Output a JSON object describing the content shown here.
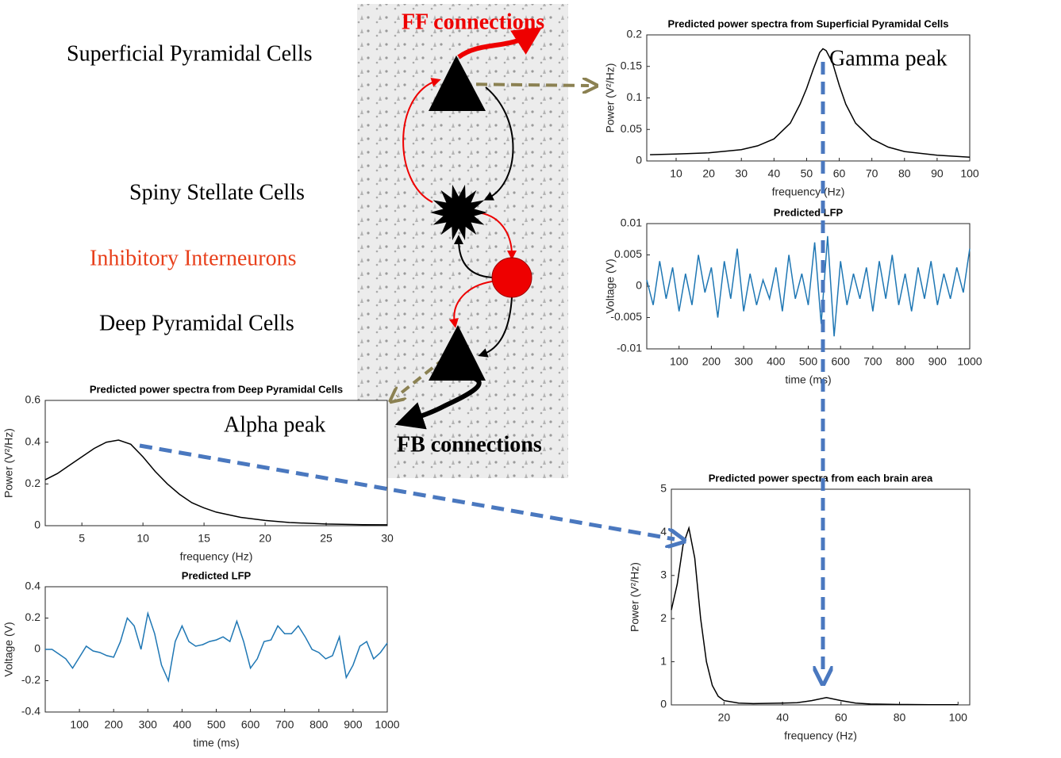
{
  "diagram": {
    "labels": [
      "FF connections",
      "Superficial Pyramidal Cells",
      "Spiny Stellate Cells",
      "Inhibitory Interneurons",
      "Deep Pyramidal Cells",
      "FB connections"
    ]
  },
  "chart_data": [
    {
      "type": "line",
      "title": "Predicted power spectra from Superficial Pyramidal Cells",
      "xlabel": "frequency (Hz)",
      "ylabel": "Power (V²/Hz)",
      "annotation": "Gamma peak",
      "x": [
        2,
        10,
        20,
        30,
        35,
        40,
        45,
        48,
        50,
        52,
        54,
        55,
        56,
        58,
        60,
        62,
        65,
        70,
        75,
        80,
        90,
        100
      ],
      "values": [
        0.01,
        0.011,
        0.013,
        0.018,
        0.024,
        0.035,
        0.06,
        0.09,
        0.115,
        0.145,
        0.172,
        0.178,
        0.175,
        0.155,
        0.12,
        0.09,
        0.06,
        0.035,
        0.022,
        0.015,
        0.009,
        0.006
      ],
      "color": "#000000",
      "xlim": [
        1,
        100
      ],
      "xticks": [
        10,
        20,
        30,
        40,
        50,
        60,
        70,
        80,
        90,
        100
      ],
      "ylim": [
        0,
        0.2
      ],
      "yticks": [
        0,
        0.05,
        0.1,
        0.15,
        0.2
      ]
    },
    {
      "type": "line",
      "title": "Predicted LFP",
      "xlabel": "time (ms)",
      "ylabel": "Voltage (V)",
      "x": [
        0,
        20,
        40,
        60,
        80,
        100,
        120,
        140,
        160,
        180,
        200,
        220,
        240,
        260,
        280,
        300,
        320,
        340,
        360,
        380,
        400,
        420,
        440,
        460,
        480,
        500,
        520,
        540,
        560,
        580,
        600,
        620,
        640,
        660,
        680,
        700,
        720,
        740,
        760,
        780,
        800,
        820,
        840,
        860,
        880,
        900,
        920,
        940,
        960,
        980,
        1000
      ],
      "values": [
        0.001,
        -0.003,
        0.004,
        -0.002,
        0.003,
        -0.004,
        0.002,
        -0.003,
        0.005,
        -0.001,
        0.003,
        -0.005,
        0.004,
        -0.002,
        0.006,
        -0.004,
        0.002,
        -0.003,
        0.001,
        -0.002,
        0.003,
        -0.004,
        0.005,
        -0.002,
        0.002,
        -0.003,
        0.007,
        -0.006,
        0.008,
        -0.008,
        0.004,
        -0.003,
        0.002,
        -0.002,
        0.003,
        -0.004,
        0.004,
        -0.002,
        0.005,
        -0.003,
        0.002,
        -0.004,
        0.003,
        -0.002,
        0.004,
        -0.003,
        0.002,
        -0.002,
        0.003,
        -0.001,
        0.006
      ],
      "color": "#1f77b4",
      "xlim": [
        0,
        1000
      ],
      "xticks": [
        100,
        200,
        300,
        400,
        500,
        600,
        700,
        800,
        900,
        1000
      ],
      "ylim": [
        -0.01,
        0.01
      ],
      "yticks": [
        -0.01,
        -0.005,
        0,
        0.005,
        0.01
      ]
    },
    {
      "type": "line",
      "title": "Predicted power spectra from Deep Pyramidal Cells",
      "xlabel": "frequency (Hz)",
      "ylabel": "Power (V²/Hz)",
      "annotation": "Alpha peak",
      "x": [
        2,
        3,
        4,
        5,
        6,
        7,
        8,
        9,
        10,
        11,
        12,
        13,
        14,
        15,
        16,
        18,
        20,
        22,
        25,
        28,
        30
      ],
      "values": [
        0.22,
        0.25,
        0.29,
        0.33,
        0.37,
        0.4,
        0.41,
        0.39,
        0.33,
        0.26,
        0.2,
        0.15,
        0.11,
        0.085,
        0.065,
        0.04,
        0.025,
        0.015,
        0.008,
        0.005,
        0.004
      ],
      "color": "#000000",
      "xlim": [
        2,
        30
      ],
      "xticks": [
        5,
        10,
        15,
        20,
        25,
        30
      ],
      "ylim": [
        0,
        0.6
      ],
      "yticks": [
        0,
        0.2,
        0.4,
        0.6
      ]
    },
    {
      "type": "line",
      "title": "Predicted LFP",
      "xlabel": "time (ms)",
      "ylabel": "Voltage (V)",
      "x": [
        0,
        20,
        40,
        60,
        80,
        100,
        120,
        140,
        160,
        180,
        200,
        220,
        240,
        260,
        280,
        300,
        320,
        340,
        360,
        380,
        400,
        420,
        440,
        460,
        480,
        500,
        520,
        540,
        560,
        580,
        600,
        620,
        640,
        660,
        680,
        700,
        720,
        740,
        760,
        780,
        800,
        820,
        840,
        860,
        880,
        900,
        920,
        940,
        960,
        980,
        1000
      ],
      "values": [
        0,
        0,
        -0.03,
        -0.06,
        -0.12,
        -0.05,
        0.02,
        -0.01,
        -0.02,
        -0.04,
        -0.05,
        0.05,
        0.2,
        0.15,
        0,
        0.23,
        0.1,
        -0.1,
        -0.2,
        0.05,
        0.15,
        0.05,
        0.02,
        0.03,
        0.05,
        0.06,
        0.08,
        0.05,
        0.18,
        0.05,
        -0.12,
        -0.06,
        0.05,
        0.06,
        0.15,
        0.1,
        0.1,
        0.15,
        0.08,
        0,
        -0.02,
        -0.06,
        -0.04,
        0.08,
        -0.18,
        -0.1,
        0.02,
        0.05,
        -0.06,
        -0.02,
        0.04
      ],
      "color": "#1f77b4",
      "xlim": [
        0,
        1000
      ],
      "xticks": [
        100,
        200,
        300,
        400,
        500,
        600,
        700,
        800,
        900,
        1000
      ],
      "ylim": [
        -0.4,
        0.4
      ],
      "yticks": [
        -0.4,
        -0.2,
        0,
        0.2,
        0.4
      ]
    },
    {
      "type": "line",
      "title": "Predicted power spectra from each brain area",
      "xlabel": "frequency (Hz)",
      "ylabel": "Power (V²/Hz)",
      "x": [
        2,
        4,
        6,
        8,
        10,
        12,
        14,
        16,
        18,
        20,
        25,
        30,
        40,
        45,
        50,
        55,
        60,
        65,
        70,
        80,
        90,
        100
      ],
      "values": [
        2.2,
        2.8,
        3.7,
        4.1,
        3.4,
        2,
        1,
        0.45,
        0.2,
        0.1,
        0.04,
        0.03,
        0.04,
        0.05,
        0.1,
        0.17,
        0.1,
        0.04,
        0.02,
        0.01,
        0.005,
        0.003
      ],
      "color": "#000000",
      "xlim": [
        2,
        104
      ],
      "xticks": [
        20,
        40,
        60,
        80,
        100
      ],
      "ylim": [
        0,
        5
      ],
      "yticks": [
        0,
        1,
        2,
        3,
        4,
        5
      ]
    }
  ]
}
